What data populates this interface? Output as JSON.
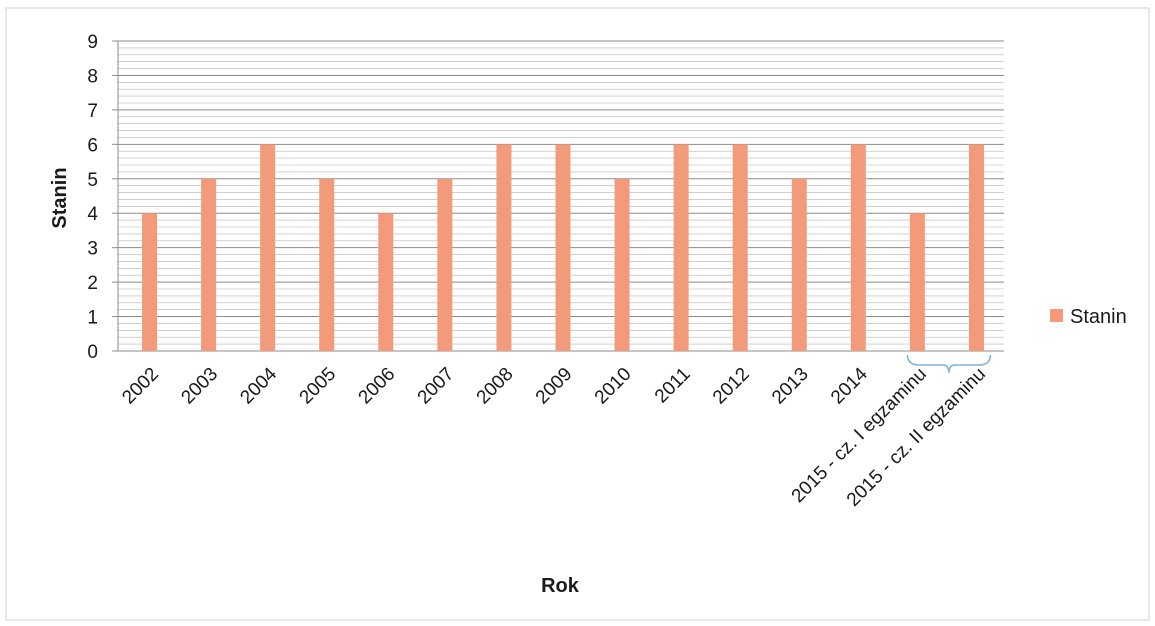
{
  "chart_data": {
    "type": "bar",
    "categories": [
      "2002",
      "2003",
      "2004",
      "2005",
      "2006",
      "2007",
      "2008",
      "2009",
      "2010",
      "2011",
      "2012",
      "2013",
      "2014",
      "2015 - cz. I egzaminu",
      "2015 - cz. II egzaminu"
    ],
    "series": [
      {
        "name": "Stanin",
        "values": [
          4,
          5,
          6,
          5,
          4,
          5,
          6,
          6,
          5,
          6,
          6,
          5,
          6,
          4,
          6
        ]
      }
    ],
    "xlabel": "Rok",
    "ylabel": "Stanin",
    "ylim": [
      0,
      9
    ],
    "yticks": [
      0,
      1,
      2,
      3,
      4,
      5,
      6,
      7,
      8,
      9
    ],
    "grid": true,
    "legend_position": "right",
    "colors": {
      "bar": "#f39a7a",
      "grid": "#b5b5b5",
      "frame": "#d0d0d0",
      "bracket": "#7fb2d8"
    }
  }
}
